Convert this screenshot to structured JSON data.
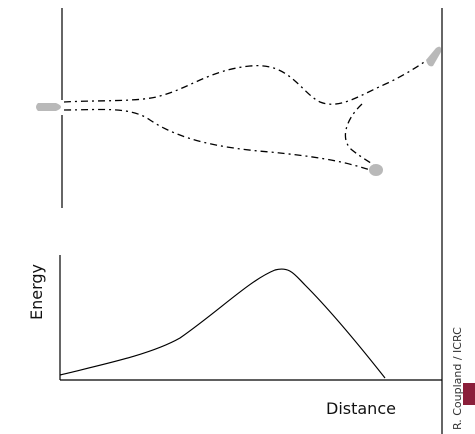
{
  "labels": {
    "y_axis": "Energy",
    "x_axis": "Distance",
    "credit": "R. Coupland / ICRC"
  },
  "colors": {
    "bullet": "#b9b9b9",
    "line": "#000000",
    "accent": "#8b1f3a"
  }
}
